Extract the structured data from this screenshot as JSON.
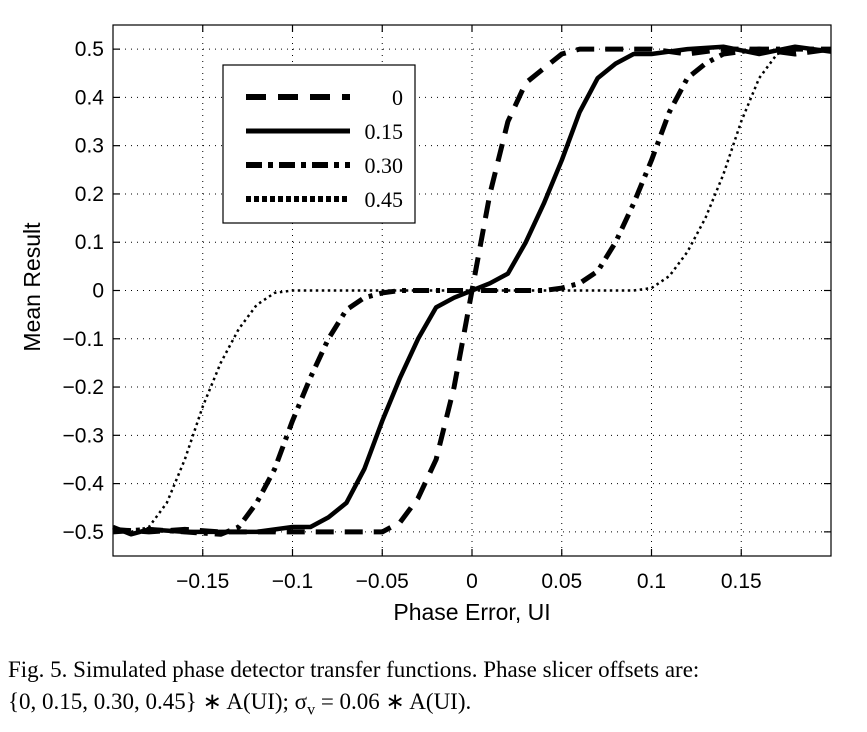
{
  "chart_data": {
    "type": "line",
    "xlabel": "Phase Error, UI",
    "ylabel": "Mean Result",
    "xlim": [
      -0.2,
      0.2
    ],
    "ylim": [
      -0.55,
      0.55
    ],
    "xticks": [
      -0.15,
      -0.1,
      -0.05,
      0,
      0.05,
      0.1,
      0.15
    ],
    "xtick_labels": [
      "−0.15",
      "−0.1",
      "−0.05",
      "0",
      "0.05",
      "0.1",
      "0.15"
    ],
    "yticks": [
      0.5,
      0.4,
      0.3,
      0.2,
      0.1,
      0,
      -0.1,
      -0.2,
      -0.3,
      -0.4,
      -0.5
    ],
    "ytick_labels": [
      "0.5",
      "0.4",
      "0.3",
      "0.2",
      "0.1",
      "0",
      "−0.1",
      "−0.2",
      "−0.3",
      "−0.4",
      "−0.5"
    ],
    "grid": true,
    "legend_position": "top-left",
    "series": [
      {
        "name": "0",
        "style": "dashed",
        "x": [
          -0.2,
          -0.18,
          -0.16,
          -0.14,
          -0.12,
          -0.1,
          -0.08,
          -0.06,
          -0.05,
          -0.04,
          -0.03,
          -0.02,
          -0.01,
          0,
          0.01,
          0.02,
          0.03,
          0.04,
          0.05,
          0.06,
          0.08,
          0.1,
          0.12,
          0.14,
          0.16,
          0.18,
          0.2
        ],
        "y": [
          -0.495,
          -0.5,
          -0.495,
          -0.5,
          -0.5,
          -0.5,
          -0.5,
          -0.5,
          -0.5,
          -0.48,
          -0.43,
          -0.35,
          -0.2,
          0,
          0.2,
          0.35,
          0.43,
          0.46,
          0.49,
          0.5,
          0.5,
          0.5,
          0.49,
          0.5,
          0.5,
          0.49,
          0.5
        ]
      },
      {
        "name": "0.15",
        "style": "solid",
        "x": [
          -0.2,
          -0.19,
          -0.18,
          -0.16,
          -0.14,
          -0.12,
          -0.1,
          -0.09,
          -0.08,
          -0.07,
          -0.06,
          -0.055,
          -0.05,
          -0.04,
          -0.03,
          -0.02,
          -0.01,
          0,
          0.01,
          0.02,
          0.03,
          0.04,
          0.05,
          0.06,
          0.07,
          0.08,
          0.09,
          0.1,
          0.12,
          0.14,
          0.16,
          0.18,
          0.2
        ],
        "y": [
          -0.49,
          -0.505,
          -0.495,
          -0.5,
          -0.5,
          -0.5,
          -0.49,
          -0.49,
          -0.47,
          -0.44,
          -0.37,
          -0.32,
          -0.27,
          -0.18,
          -0.1,
          -0.035,
          -0.015,
          0,
          0.015,
          0.035,
          0.1,
          0.18,
          0.27,
          0.37,
          0.44,
          0.47,
          0.49,
          0.49,
          0.5,
          0.505,
          0.49,
          0.505,
          0.495
        ]
      },
      {
        "name": "0.30",
        "style": "dashdot",
        "x": [
          -0.2,
          -0.18,
          -0.16,
          -0.14,
          -0.13,
          -0.12,
          -0.11,
          -0.1,
          -0.09,
          -0.08,
          -0.07,
          -0.06,
          -0.05,
          -0.04,
          -0.02,
          0,
          0.02,
          0.04,
          0.05,
          0.06,
          0.07,
          0.08,
          0.09,
          0.1,
          0.11,
          0.12,
          0.13,
          0.14,
          0.16,
          0.18,
          0.2
        ],
        "y": [
          -0.5,
          -0.495,
          -0.5,
          -0.505,
          -0.49,
          -0.44,
          -0.37,
          -0.27,
          -0.18,
          -0.1,
          -0.04,
          -0.015,
          -0.005,
          0,
          0,
          0,
          0,
          0,
          0.005,
          0.015,
          0.04,
          0.1,
          0.18,
          0.27,
          0.37,
          0.44,
          0.47,
          0.49,
          0.5,
          0.5,
          0.5
        ]
      },
      {
        "name": "0.45",
        "style": "dotted",
        "x": [
          -0.2,
          -0.19,
          -0.18,
          -0.17,
          -0.16,
          -0.15,
          -0.14,
          -0.13,
          -0.12,
          -0.11,
          -0.1,
          -0.09,
          -0.08,
          -0.06,
          -0.04,
          -0.02,
          0,
          0.02,
          0.04,
          0.06,
          0.08,
          0.09,
          0.1,
          0.11,
          0.12,
          0.13,
          0.14,
          0.15,
          0.16,
          0.17,
          0.18,
          0.19,
          0.2
        ],
        "y": [
          -0.5,
          -0.5,
          -0.49,
          -0.44,
          -0.35,
          -0.24,
          -0.15,
          -0.08,
          -0.03,
          -0.005,
          0,
          0,
          0,
          0,
          0,
          0,
          0,
          0,
          0,
          0,
          0,
          0,
          0.005,
          0.03,
          0.08,
          0.15,
          0.24,
          0.35,
          0.44,
          0.49,
          0.5,
          0.5,
          0.5
        ]
      }
    ]
  },
  "caption": {
    "line1": "Fig. 5.  Simulated phase detector transfer functions. Phase slicer offsets are:",
    "line2": "{0, 0.15, 0.30, 0.45} ∗ A(UI); σ",
    "line2_sub": "v",
    "line2_rest": " = 0.06 ∗ A(UI)."
  }
}
